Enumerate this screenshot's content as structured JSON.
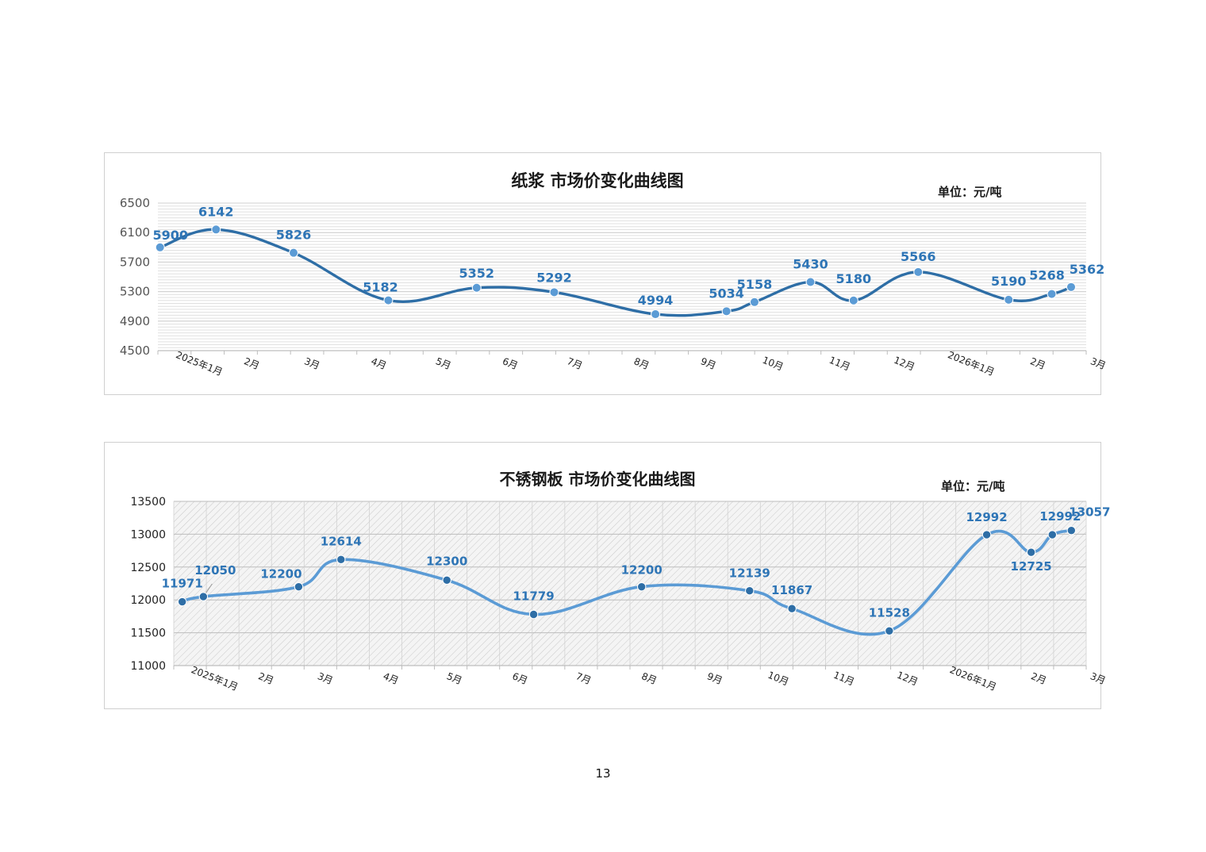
{
  "page_number": "13",
  "chart_data": [
    {
      "type": "line",
      "title": "纸浆 市场价变化曲线图",
      "unit": "单位：元/吨",
      "ylim": [
        4500,
        6500
      ],
      "yticks": [
        4500,
        4900,
        5300,
        5700,
        6100,
        6500
      ],
      "xlabel": "",
      "ylabel": "",
      "grid": "dense horizontal",
      "line_color": "#2e6ea6",
      "marker_color": "#5b9bd5",
      "label_color": "#2e75b6",
      "x_ticks": [
        "2025年1月",
        "2月",
        "3月",
        "4月",
        "5月",
        "6月",
        "7月",
        "8月",
        "9月",
        "10月",
        "11月",
        "12月",
        "2026年1月",
        "2月",
        "3月"
      ],
      "series": [
        {
          "x": [
            "2025-01-02",
            "2025-01-28",
            "2025-03-05",
            "2025-04-18",
            "2025-05-29",
            "2025-07-04",
            "2025-08-20",
            "2025-09-22",
            "2025-10-05",
            "2025-10-31",
            "2025-11-20",
            "2025-12-20",
            "2026-01-31",
            "2026-02-20",
            "2026-03-01"
          ],
          "values": [
            5900,
            6142,
            5826,
            5182,
            5352,
            5292,
            4994,
            5034,
            5158,
            5430,
            5180,
            5566,
            5190,
            5268,
            5362
          ],
          "labels": [
            "5900",
            "6142",
            "5826",
            "5182",
            "5352",
            "5292",
            "4994",
            "5034",
            "5158",
            "5430",
            "5180",
            "5566",
            "5190",
            "5268",
            "5362"
          ]
        }
      ]
    },
    {
      "type": "line",
      "title": "不锈钢板 市场价变化曲线图",
      "unit": "单位：元/吨",
      "ylim": [
        11000,
        13500
      ],
      "yticks": [
        11000,
        11500,
        12000,
        12500,
        13000,
        13500
      ],
      "xlabel": "",
      "ylabel": "",
      "grid": "hatched plot area",
      "line_color": "#5b9bd5",
      "marker_color": "#2e6ea6",
      "label_color": "#2e75b6",
      "x_ticks": [
        "2025年1月",
        "2月",
        "3月",
        "4月",
        "5月",
        "6月",
        "7月",
        "8月",
        "9月",
        "10月",
        "11月",
        "12月",
        "2026年1月",
        "2月",
        "3月"
      ],
      "series": [
        {
          "x": [
            "2025-01-05",
            "2025-01-15",
            "2025-03-01",
            "2025-03-21",
            "2025-05-10",
            "2025-06-20",
            "2025-08-10",
            "2025-09-30",
            "2025-10-20",
            "2025-12-05",
            "2026-01-20",
            "2026-02-10",
            "2026-02-20",
            "2026-03-01"
          ],
          "values": [
            11971,
            12050,
            12200,
            12614,
            12300,
            11779,
            12200,
            12139,
            11867,
            11528,
            12992,
            12725,
            12992,
            13057
          ],
          "labels": [
            "11971",
            "12050",
            "12200",
            "12614",
            "12300",
            "11779",
            "12200",
            "12139",
            "11867",
            "11528",
            "12992",
            "12725",
            "12992",
            "13057"
          ]
        }
      ]
    }
  ]
}
